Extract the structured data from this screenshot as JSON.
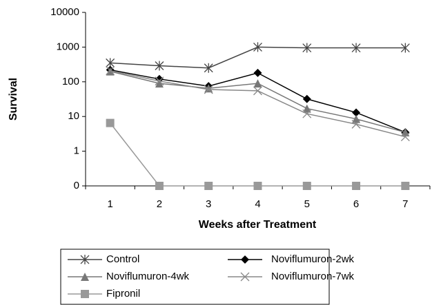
{
  "chart_data": {
    "type": "line",
    "x_label": "Weeks after Treatment",
    "y_label": "Survival",
    "categories": [
      "1",
      "2",
      "3",
      "4",
      "5",
      "6",
      "7"
    ],
    "yscale": "log",
    "ylim": [
      0.1,
      10000
    ],
    "yticks": [
      {
        "value": 0.1,
        "label": "0"
      },
      1,
      10,
      100,
      1000,
      10000
    ],
    "grid": false,
    "series": [
      {
        "name": "Control",
        "color": "#444444",
        "marker": "star",
        "values": [
          350,
          290,
          250,
          1000,
          950,
          950,
          950
        ]
      },
      {
        "name": "Noviflumuron-2wk",
        "color": "#000000",
        "marker": "diamond",
        "values": [
          220,
          120,
          75,
          180,
          32,
          13,
          3.5
        ]
      },
      {
        "name": "Noviflumuron-4wk",
        "color": "#777777",
        "marker": "triangle",
        "values": [
          200,
          90,
          65,
          90,
          17,
          8.5,
          3.5
        ]
      },
      {
        "name": "Noviflumuron-7wk",
        "color": "#888888",
        "marker": "x",
        "values": [
          210,
          105,
          60,
          55,
          12,
          6,
          2.6
        ]
      },
      {
        "name": "Fipronil",
        "color": "#999999",
        "marker": "square",
        "values": [
          6.5,
          0.1,
          0.1,
          0.1,
          0.1,
          0.1,
          0.1
        ]
      }
    ]
  }
}
